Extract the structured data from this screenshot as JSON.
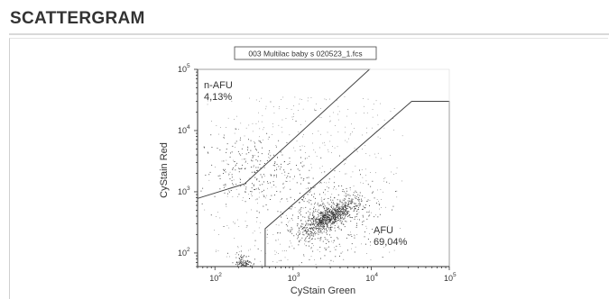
{
  "page": {
    "heading": "SCATTERGRAM"
  },
  "chart_data": {
    "type": "scatter",
    "title": "003 Multilac baby s 020523_1.fcs",
    "xlabel": "CyStain Green",
    "ylabel": "CyStain Red",
    "x_scale": "log",
    "y_scale": "log",
    "xlim": [
      60,
      100000
    ],
    "ylim": [
      60,
      100000
    ],
    "x_ticks": [
      {
        "base": "10",
        "exp": "2",
        "value": 100
      },
      {
        "base": "10",
        "exp": "3",
        "value": 1000
      },
      {
        "base": "10",
        "exp": "4",
        "value": 10000
      },
      {
        "base": "10",
        "exp": "5",
        "value": 100000
      }
    ],
    "y_ticks": [
      {
        "base": "10",
        "exp": "2",
        "value": 100
      },
      {
        "base": "10",
        "exp": "3",
        "value": 1000
      },
      {
        "base": "10",
        "exp": "4",
        "value": 10000
      },
      {
        "base": "10",
        "exp": "5",
        "value": 100000
      }
    ],
    "gates": [
      {
        "name": "n-AFU",
        "percent": "4,13%",
        "polygon": [
          [
            60,
            780
          ],
          [
            240,
            1350
          ],
          [
            9500,
            100000
          ],
          [
            60,
            100000
          ]
        ]
      },
      {
        "name": "AFU",
        "percent": "69,04%",
        "polygon": [
          [
            440,
            60
          ],
          [
            440,
            250
          ],
          [
            33000,
            30000
          ],
          [
            100000,
            30000
          ],
          [
            100000,
            60
          ]
        ]
      }
    ],
    "clusters": [
      {
        "population": "AFU",
        "center": [
          2900,
          390
        ],
        "spread": [
          0.13,
          0.1
        ]
      },
      {
        "population": "debris",
        "center": [
          230,
          65
        ],
        "spread": [
          0.06,
          0.09
        ]
      },
      {
        "population": "n-AFU",
        "center": [
          300,
          2200
        ],
        "spread": [
          0.35,
          0.3
        ]
      }
    ],
    "grid": false
  },
  "colors": {
    "dot": "#333333",
    "gate": "#444444",
    "axis": "#333333"
  }
}
